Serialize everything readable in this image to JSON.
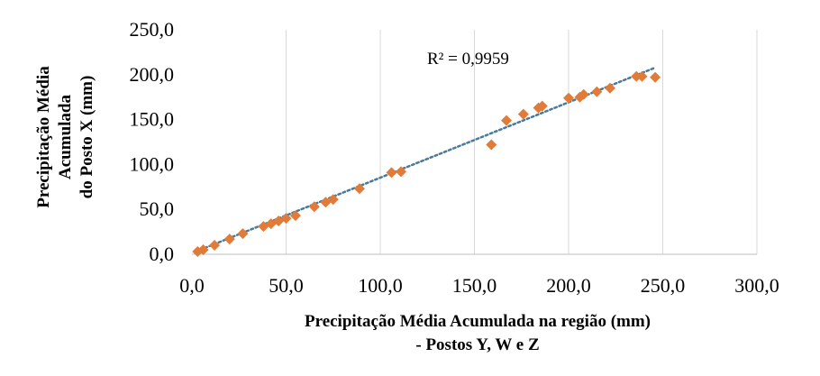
{
  "chart_data": {
    "type": "scatter",
    "title": "",
    "xlabel": [
      "Precipitação Média Acumulada na região (mm)",
      "- Postos Y, W e Z"
    ],
    "ylabel": [
      "Precipitação Média",
      "Acumulada",
      "do Posto  X (mm)"
    ],
    "xlim": [
      0,
      300
    ],
    "ylim": [
      0,
      250
    ],
    "x_ticks": [
      0,
      50,
      100,
      150,
      200,
      250,
      300
    ],
    "y_ticks": [
      0,
      50,
      100,
      150,
      200,
      250
    ],
    "x_tick_labels": [
      "0,0",
      "50,0",
      "100,0",
      "150,0",
      "200,0",
      "250,0",
      "300,0"
    ],
    "y_tick_labels": [
      "0,0",
      "50,0",
      "100,0",
      "150,0",
      "200,0",
      "250,0"
    ],
    "grid": "vertical",
    "legend": "none",
    "annotation": "R² = 0,9959",
    "series": [
      {
        "marker": "diamond",
        "color": "#E07B39",
        "points": [
          [
            3,
            3
          ],
          [
            6,
            5
          ],
          [
            12,
            10
          ],
          [
            20,
            17
          ],
          [
            27,
            23
          ],
          [
            38,
            31
          ],
          [
            42,
            34
          ],
          [
            46,
            37
          ],
          [
            50,
            40
          ],
          [
            55,
            43
          ],
          [
            65,
            53
          ],
          [
            71,
            58
          ],
          [
            75,
            61
          ],
          [
            89,
            73
          ],
          [
            106,
            91
          ],
          [
            111,
            92
          ],
          [
            159,
            122
          ],
          [
            167,
            149
          ],
          [
            176,
            156
          ],
          [
            184,
            163
          ],
          [
            186,
            165
          ],
          [
            200,
            174
          ],
          [
            206,
            175
          ],
          [
            208,
            178
          ],
          [
            215,
            181
          ],
          [
            222,
            185
          ],
          [
            236,
            198
          ],
          [
            239,
            198
          ],
          [
            246,
            197
          ]
        ]
      }
    ],
    "trendline": {
      "style": "dotted",
      "color": "#4A7A9A",
      "from": [
        2,
        3
      ],
      "to": [
        245,
        207
      ]
    }
  }
}
